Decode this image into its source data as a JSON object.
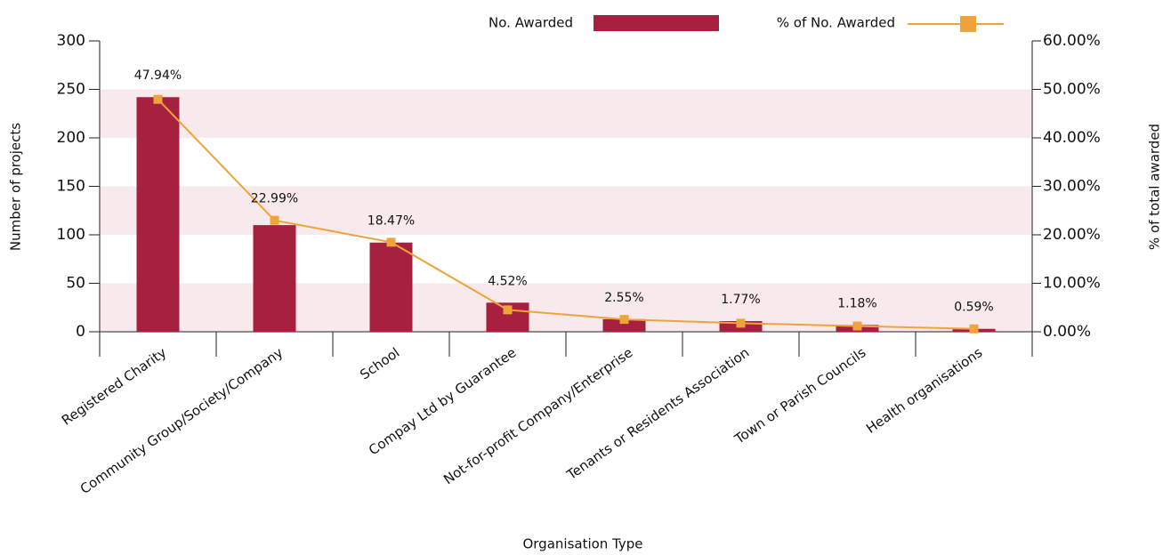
{
  "chart_data": {
    "type": "bar-line",
    "x_label": "Organisation Type",
    "y_label": "Number of projects",
    "y2_label": "% of total awarded",
    "categories": [
      "Registered Charity",
      "Community Group/Society/Company",
      "School",
      "Compay Ltd by Guarantee",
      "Not-for-profit Company/Enterprise",
      "Tenants or Residents Association",
      "Town or Parish Councils",
      "Health organisations"
    ],
    "series": [
      {
        "name": "No. Awarded",
        "type": "bar",
        "color": "#a8203f",
        "values": [
          242,
          110,
          92,
          30,
          13,
          11,
          7,
          3
        ]
      },
      {
        "name": "% of No. Awarded",
        "type": "line",
        "axis": "y2",
        "color": "#f0a33a",
        "values": [
          47.94,
          22.99,
          18.47,
          4.52,
          2.55,
          1.77,
          1.18,
          0.59
        ],
        "value_labels": [
          "47.94%",
          "22.99%",
          "18.47%",
          "4.52%",
          "2.55%",
          "1.77%",
          "1.18%",
          "0.59%"
        ]
      }
    ],
    "ylim": [
      0,
      300
    ],
    "yticks": [
      0,
      50,
      100,
      150,
      200,
      250,
      300
    ],
    "y2lim": [
      0,
      60
    ],
    "y2ticks": [
      {
        "value": 0,
        "label": "0.00%"
      },
      {
        "value": 10,
        "label": "10.00%"
      },
      {
        "value": 20,
        "label": "20.00%"
      },
      {
        "value": 30,
        "label": "30.00%"
      },
      {
        "value": 40,
        "label": "40.00%"
      },
      {
        "value": 50,
        "label": "50.00%"
      },
      {
        "value": 60,
        "label": "60.00%"
      }
    ],
    "band_color": "#f8eaec",
    "legend": "top"
  }
}
